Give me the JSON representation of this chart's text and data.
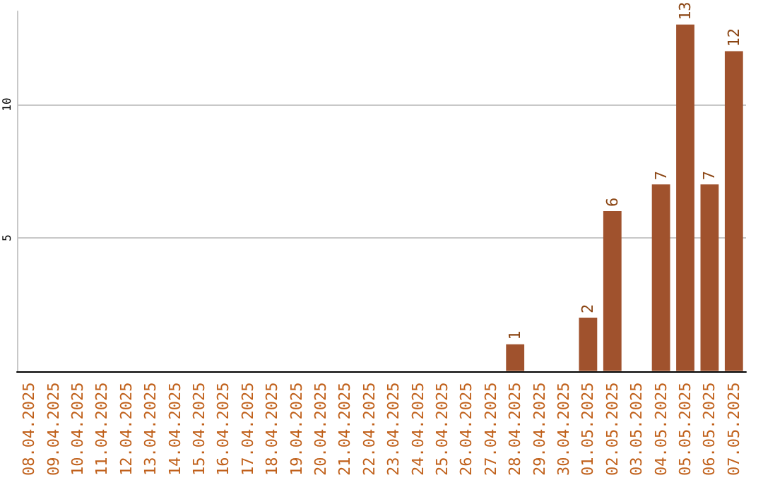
{
  "chart_data": {
    "type": "bar",
    "categories": [
      "08.04.2025",
      "09.04.2025",
      "10.04.2025",
      "11.04.2025",
      "12.04.2025",
      "13.04.2025",
      "14.04.2025",
      "15.04.2025",
      "16.04.2025",
      "17.04.2025",
      "18.04.2025",
      "19.04.2025",
      "20.04.2025",
      "21.04.2025",
      "22.04.2025",
      "23.04.2025",
      "24.04.2025",
      "25.04.2025",
      "26.04.2025",
      "27.04.2025",
      "28.04.2025",
      "29.04.2025",
      "30.04.2025",
      "01.05.2025",
      "02.05.2025",
      "03.05.2025",
      "04.05.2025",
      "05.05.2025",
      "06.05.2025",
      "07.05.2025"
    ],
    "values": [
      null,
      null,
      null,
      null,
      null,
      null,
      null,
      null,
      null,
      null,
      null,
      null,
      null,
      null,
      null,
      null,
      null,
      null,
      null,
      null,
      1,
      null,
      null,
      2,
      6,
      null,
      7,
      13,
      7,
      12
    ],
    "color": "#a0522d",
    "ylim": [
      0,
      13.5
    ],
    "yticks": [
      5,
      10
    ],
    "grid": "y",
    "data_labels": true
  }
}
